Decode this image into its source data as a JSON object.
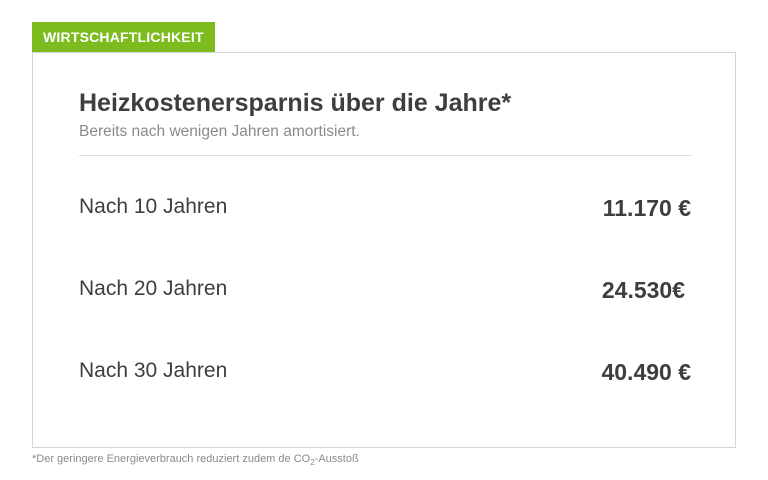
{
  "tab": {
    "label": "WIRTSCHAFTLICHKEIT"
  },
  "card": {
    "title": "Heizkostenersparnis über die Jahre*",
    "subtitle": "Bereits nach wenigen Jahren amortisiert.",
    "rows": [
      {
        "label": "Nach 10 Jahren",
        "value": "11.170 €"
      },
      {
        "label": "Nach 20 Jahren",
        "value": "24.530€"
      },
      {
        "label": "Nach 30 Jahren",
        "value": "40.490 €"
      }
    ]
  },
  "footnote": {
    "prefix": "*Der geringere Energieverbrauch reduziert zudem de CO",
    "subscript": "2",
    "suffix": "-Ausstoß"
  },
  "colors": {
    "accent": "#7dbc1f",
    "text": "#3e3e3e",
    "muted": "#8a8a8a",
    "border": "#d6d6d6"
  }
}
